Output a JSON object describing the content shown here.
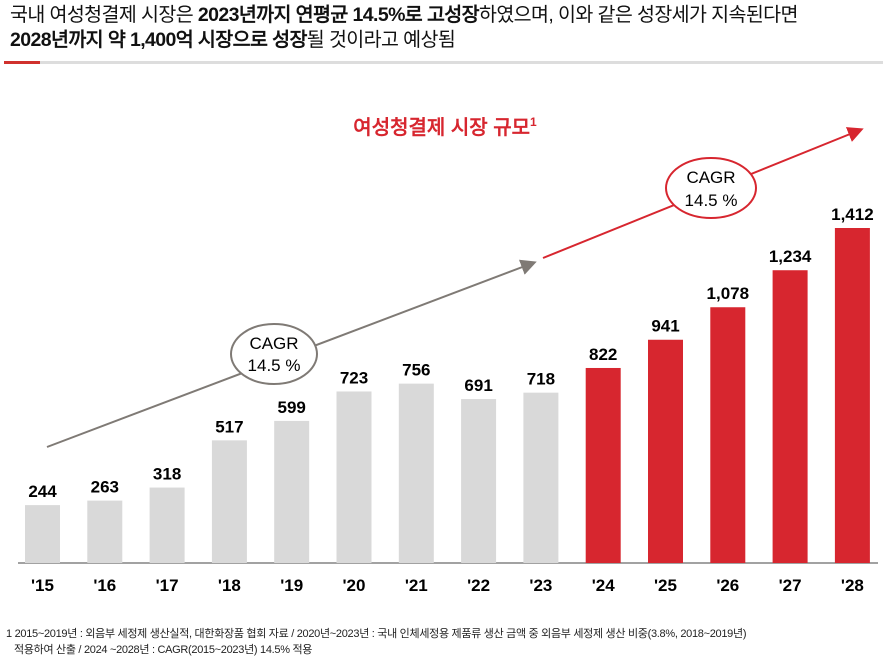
{
  "headline": {
    "line1": [
      {
        "text": "국내 여성청결제 시장은 ",
        "bold": false
      },
      {
        "text": "2023년까지 연평균 14.5%로 고성장",
        "bold": true
      },
      {
        "text": "하였으며, 이와 같은 성장세가 지속된다면",
        "bold": false
      }
    ],
    "line2": [
      {
        "text": "2028년까지 약 1,400억 시장으로 성장",
        "bold": true
      },
      {
        "text": "될 것이라고 예상됨",
        "bold": false
      }
    ]
  },
  "chart_data": {
    "type": "bar",
    "title": "여성청결제 시장 규모",
    "title_superscript": "1",
    "categories": [
      "'15",
      "'16",
      "'17",
      "'18",
      "'19",
      "'20",
      "'21",
      "'22",
      "'23",
      "'24",
      "'25",
      "'26",
      "'27",
      "'28"
    ],
    "values": [
      244,
      263,
      318,
      517,
      599,
      723,
      756,
      691,
      718,
      822,
      941,
      1078,
      1234,
      1412
    ],
    "value_labels": [
      "244",
      "263",
      "318",
      "517",
      "599",
      "723",
      "756",
      "691",
      "718",
      "822",
      "941",
      "1,078",
      "1,234",
      "1,412"
    ],
    "series_colors": {
      "actual": "#d9d9d9",
      "forecast": "#d7262f"
    },
    "forecast_from_index": 9,
    "annotations": [
      {
        "text_line1": "CAGR",
        "text_line2": "14.5 %",
        "color": "#7f7a75",
        "period": "actual"
      },
      {
        "text_line1": "CAGR",
        "text_line2": "14.5 %",
        "color": "#d7262f",
        "period": "forecast"
      }
    ],
    "accent_color": "#d7262f"
  },
  "footnote": {
    "line1": "1 2015~2019년 : 외음부 세정제 생산실적, 대한화장품 협회 자료 / 2020년~2023년 : 국내 인체세정용 제품류 생산 금액 중 외음부 세정제 생산 비중(3.8%, 2018~2019년)",
    "line2": "적용하여 산출 / 2024 ~2028년 : CAGR(2015~2023년) 14.5% 적용"
  }
}
